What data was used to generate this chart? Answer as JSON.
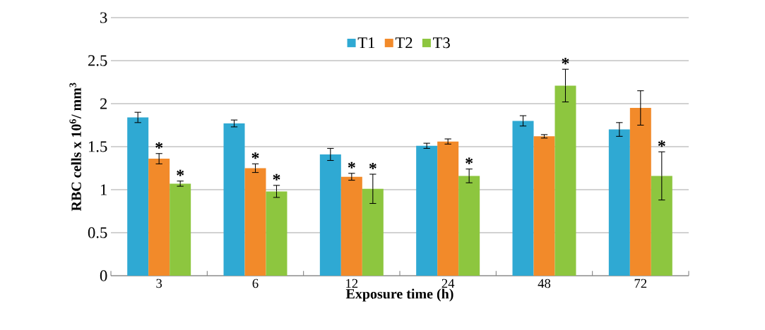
{
  "chart_data": {
    "type": "bar",
    "xlabel": "Exposure time (h)",
    "ylabel": "RBC cells x 10$^{6}$/ mm$^{3}$",
    "categories": [
      "3",
      "6",
      "12",
      "24",
      "48",
      "72"
    ],
    "series": [
      {
        "name": "T1",
        "color": "#2fa9d3",
        "values": [
          1.84,
          1.77,
          1.41,
          1.51,
          1.8,
          1.7
        ],
        "errors": [
          0.06,
          0.04,
          0.07,
          0.03,
          0.06,
          0.08
        ]
      },
      {
        "name": "T2",
        "color": "#f28a2a",
        "values": [
          1.36,
          1.25,
          1.15,
          1.56,
          1.62,
          1.95
        ],
        "errors": [
          0.06,
          0.05,
          0.04,
          0.03,
          0.02,
          0.2
        ],
        "value_labels": [
          "*",
          "*",
          "*",
          null,
          null,
          null
        ]
      },
      {
        "name": "T3",
        "color": "#8dc63f",
        "values": [
          1.07,
          0.98,
          1.01,
          1.16,
          2.21,
          1.16
        ],
        "errors": [
          0.03,
          0.07,
          0.17,
          0.08,
          0.19,
          0.28
        ],
        "value_labels": [
          "*",
          "*",
          "*",
          "*",
          "*",
          "*"
        ]
      }
    ],
    "ylim": [
      0,
      3
    ],
    "yticks": [
      0,
      0.5,
      1,
      1.5,
      2,
      2.5,
      3
    ],
    "grid": "y",
    "legend": "top"
  }
}
